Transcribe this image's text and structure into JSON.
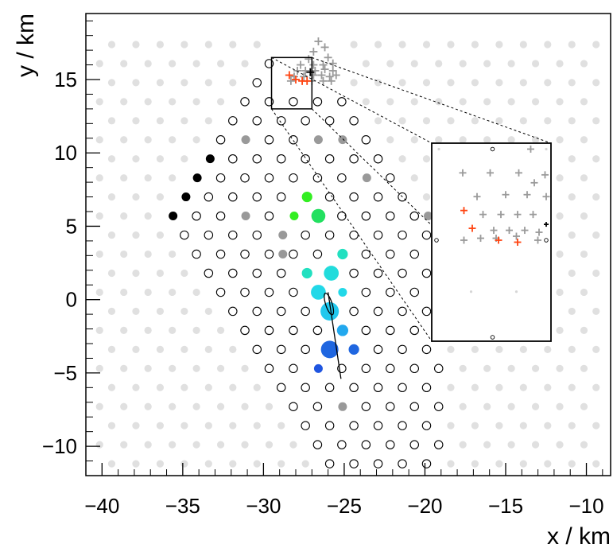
{
  "chart_data": {
    "type": "scatter",
    "title": "",
    "xlabel": "x / km",
    "ylabel": "y / km",
    "xlim": [
      -41,
      -8.5
    ],
    "ylim": [
      -12,
      19.5
    ],
    "x_ticks": [
      -40,
      -35,
      -30,
      -25,
      -20,
      -15,
      -10
    ],
    "x_tick_labels": [
      "−40",
      "−35",
      "−30",
      "−25",
      "−20",
      "−15",
      "−10"
    ],
    "y_ticks": [
      -10,
      -5,
      0,
      5,
      10,
      15
    ],
    "y_tick_labels": [
      "−10",
      "−5",
      "0",
      "5",
      "10",
      "15"
    ],
    "grid": false,
    "legend": "none",
    "array": {
      "spacing_km": 1.5,
      "color_inactive_background": "#e0e0e0",
      "color_no_signal": "#000000",
      "color_excluded": "#999999"
    },
    "triggered_stations": [
      {
        "x": -35.6,
        "y": 5.7,
        "size": 1,
        "color": "#000000"
      },
      {
        "x": -34.8,
        "y": 7.0,
        "size": 1,
        "color": "#000000"
      },
      {
        "x": -34.1,
        "y": 8.3,
        "size": 1,
        "color": "#000000"
      },
      {
        "x": -33.3,
        "y": 9.6,
        "size": 1,
        "color": "#000000"
      },
      {
        "x": -28.1,
        "y": 5.7,
        "size": 1,
        "color": "#33ee22"
      },
      {
        "x": -27.3,
        "y": 7.0,
        "size": 1.2,
        "color": "#33ee22"
      },
      {
        "x": -26.6,
        "y": 5.7,
        "size": 1.6,
        "color": "#22e060"
      },
      {
        "x": -25.1,
        "y": 3.1,
        "size": 1.2,
        "color": "#22e0c0"
      },
      {
        "x": -27.3,
        "y": 1.8,
        "size": 1.2,
        "color": "#22e0c0"
      },
      {
        "x": -25.8,
        "y": 1.8,
        "size": 1.7,
        "color": "#22dcdc"
      },
      {
        "x": -26.6,
        "y": 0.5,
        "size": 1.7,
        "color": "#22d8e8"
      },
      {
        "x": -25.1,
        "y": 0.5,
        "size": 1,
        "color": "#22d8e8"
      },
      {
        "x": -25.9,
        "y": -0.8,
        "size": 2.1,
        "color": "#22c8ee"
      },
      {
        "x": -25.1,
        "y": -2.1,
        "size": 1.3,
        "color": "#22a8ee"
      },
      {
        "x": -25.9,
        "y": -3.4,
        "size": 2.0,
        "color": "#1f66e0"
      },
      {
        "x": -24.4,
        "y": -3.4,
        "size": 1.2,
        "color": "#1f66e0"
      },
      {
        "x": -26.6,
        "y": -4.7,
        "size": 1,
        "color": "#1f55e0"
      }
    ],
    "excluded_stations": [
      {
        "x": -31.1,
        "y": 10.9
      },
      {
        "x": -26.6,
        "y": 10.9
      },
      {
        "x": -25.1,
        "y": 10.9
      },
      {
        "x": -23.6,
        "y": 8.3
      },
      {
        "x": -31.1,
        "y": 5.7
      },
      {
        "x": -19.8,
        "y": 5.7
      },
      {
        "x": -28.8,
        "y": 4.4
      },
      {
        "x": -28.8,
        "y": 3.1
      },
      {
        "x": -25.1,
        "y": -7.3
      }
    ],
    "shower_axis": {
      "x": [
        -26.0,
        -25.2
      ],
      "y": [
        0.5,
        -5.4
      ]
    },
    "core_ellipse": {
      "cx": -25.95,
      "cy": -0.3,
      "rx": 0.2,
      "ry": 0.7
    },
    "inset_source_box": {
      "x": [
        -29.5,
        -27.0
      ],
      "y": [
        13.0,
        16.5
      ]
    },
    "radio_markers": {
      "grey": [
        {
          "x": -26.6,
          "y": 17.6
        },
        {
          "x": -26.2,
          "y": 17.2
        },
        {
          "x": -26.9,
          "y": 16.9
        },
        {
          "x": -27.2,
          "y": 16.4
        },
        {
          "x": -26.0,
          "y": 16.5
        },
        {
          "x": -27.7,
          "y": 16.0
        },
        {
          "x": -26.9,
          "y": 16.0
        },
        {
          "x": -26.3,
          "y": 16.0
        },
        {
          "x": -25.7,
          "y": 16.1
        },
        {
          "x": -27.9,
          "y": 15.6
        },
        {
          "x": -27.4,
          "y": 15.6
        },
        {
          "x": -26.8,
          "y": 15.6
        },
        {
          "x": -26.2,
          "y": 15.7
        },
        {
          "x": -25.7,
          "y": 15.6
        },
        {
          "x": -28.1,
          "y": 15.2
        },
        {
          "x": -27.5,
          "y": 15.2
        },
        {
          "x": -26.9,
          "y": 15.3
        },
        {
          "x": -26.4,
          "y": 15.3
        },
        {
          "x": -25.9,
          "y": 15.2
        },
        {
          "x": -25.5,
          "y": 15.3
        },
        {
          "x": -28.3,
          "y": 14.9
        },
        {
          "x": -27.0,
          "y": 14.9
        },
        {
          "x": -26.3,
          "y": 14.9
        },
        {
          "x": -25.8,
          "y": 14.9
        }
      ],
      "orange": [
        {
          "x": -28.4,
          "y": 15.3
        },
        {
          "x": -28.0,
          "y": 15.0
        },
        {
          "x": -27.6,
          "y": 14.9
        },
        {
          "x": -27.3,
          "y": 14.9
        }
      ],
      "black": [
        {
          "x": -27.1,
          "y": 15.5
        }
      ]
    },
    "inset": {
      "crosses_grey": [
        [
          0.83,
          0.03
        ],
        [
          0.26,
          0.15
        ],
        [
          0.49,
          0.15
        ],
        [
          0.73,
          0.15
        ],
        [
          0.95,
          0.16
        ],
        [
          0.86,
          0.2
        ],
        [
          0.38,
          0.27
        ],
        [
          0.62,
          0.26
        ],
        [
          0.8,
          0.26
        ],
        [
          0.96,
          0.27
        ],
        [
          0.43,
          0.36
        ],
        [
          0.58,
          0.36
        ],
        [
          0.72,
          0.36
        ],
        [
          0.85,
          0.36
        ],
        [
          0.52,
          0.44
        ],
        [
          0.65,
          0.44
        ],
        [
          0.78,
          0.44
        ],
        [
          0.9,
          0.45
        ],
        [
          0.27,
          0.49
        ],
        [
          0.41,
          0.48
        ],
        [
          0.54,
          0.48
        ],
        [
          0.71,
          0.47
        ],
        [
          0.89,
          0.49
        ]
      ],
      "crosses_orange": [
        [
          0.27,
          0.34
        ],
        [
          0.34,
          0.43
        ],
        [
          0.56,
          0.49
        ],
        [
          0.72,
          0.5
        ]
      ],
      "crosses_black": [
        [
          0.96,
          0.41
        ]
      ],
      "open_circles": [
        [
          0.51,
          0.03
        ],
        [
          0.04,
          0.49
        ],
        [
          0.96,
          0.49
        ],
        [
          0.51,
          0.98
        ]
      ],
      "light_dots": [
        [
          0.06,
          0.03
        ],
        [
          0.96,
          0.03
        ],
        [
          0.71,
          0.75
        ],
        [
          0.33,
          0.75
        ]
      ]
    }
  }
}
